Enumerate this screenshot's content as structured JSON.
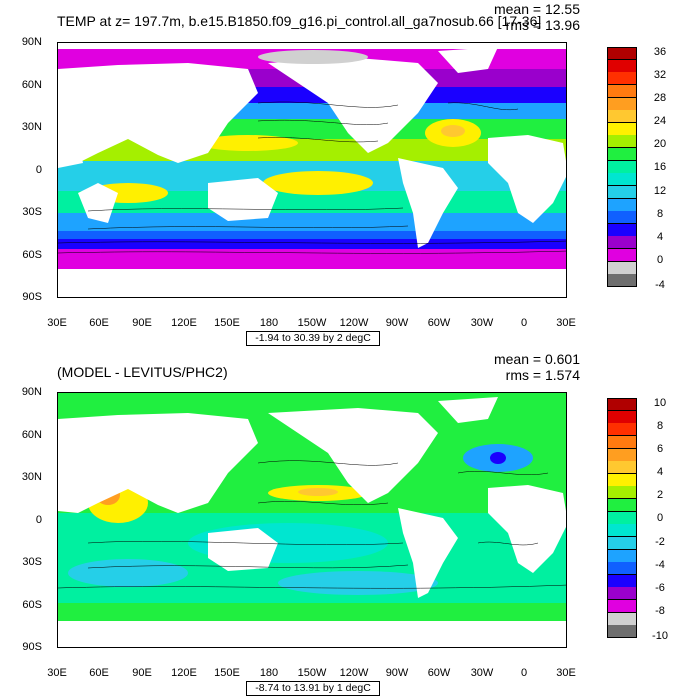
{
  "colors": {
    "top_colorbar": [
      "#6e6e6e",
      "#d0d0d0",
      "#e000e0",
      "#9a00cc",
      "#1a00ff",
      "#1060ff",
      "#1ea3ff",
      "#25cfe8",
      "#00e6d0",
      "#00f0a0",
      "#20ef40",
      "#a5ef00",
      "#fff000",
      "#ffc830",
      "#ff9e20",
      "#ff7a10",
      "#ff3000",
      "#e00000",
      "#b00000"
    ],
    "bottom_colorbar": [
      "#6e6e6e",
      "#d0d0d0",
      "#e000e0",
      "#9a00cc",
      "#1a00ff",
      "#1060ff",
      "#1ea3ff",
      "#25cfe8",
      "#00e6d0",
      "#00f0a0",
      "#20ef40",
      "#a5ef00",
      "#fff000",
      "#ffc830",
      "#ff9e20",
      "#ff7a10",
      "#ff3000",
      "#e00000",
      "#b00000"
    ]
  },
  "map_top": {
    "title": "TEMP at z= 197.7m, b.e15.B1850.f09_g16.pi_control.all_ga7nosub.66 [17-36]",
    "mean": "mean = 12.55",
    "rms": "rms = 13.96",
    "range_label": "-1.94 to 30.39 by 2 degC",
    "colorbar_labels": [
      "36",
      "32",
      "28",
      "24",
      "20",
      "16",
      "12",
      "8",
      "4",
      "0",
      "-4"
    ]
  },
  "map_bottom": {
    "title": "(MODEL - LEVITUS/PHC2)",
    "mean": "mean = 0.601",
    "rms": "rms = 1.574",
    "range_label": "-8.74 to 13.91 by 1 degC",
    "colorbar_labels": [
      "10",
      "8",
      "6",
      "4",
      "2",
      "0",
      "-2",
      "-4",
      "-6",
      "-8",
      "-10"
    ]
  },
  "axes": {
    "lat_labels": [
      "90N",
      "60N",
      "30N",
      "0",
      "30S",
      "60S",
      "90S"
    ],
    "lon_labels": [
      "30E",
      "60E",
      "90E",
      "120E",
      "150E",
      "180",
      "150W",
      "120W",
      "90W",
      "60W",
      "30W",
      "0",
      "30E"
    ]
  }
}
